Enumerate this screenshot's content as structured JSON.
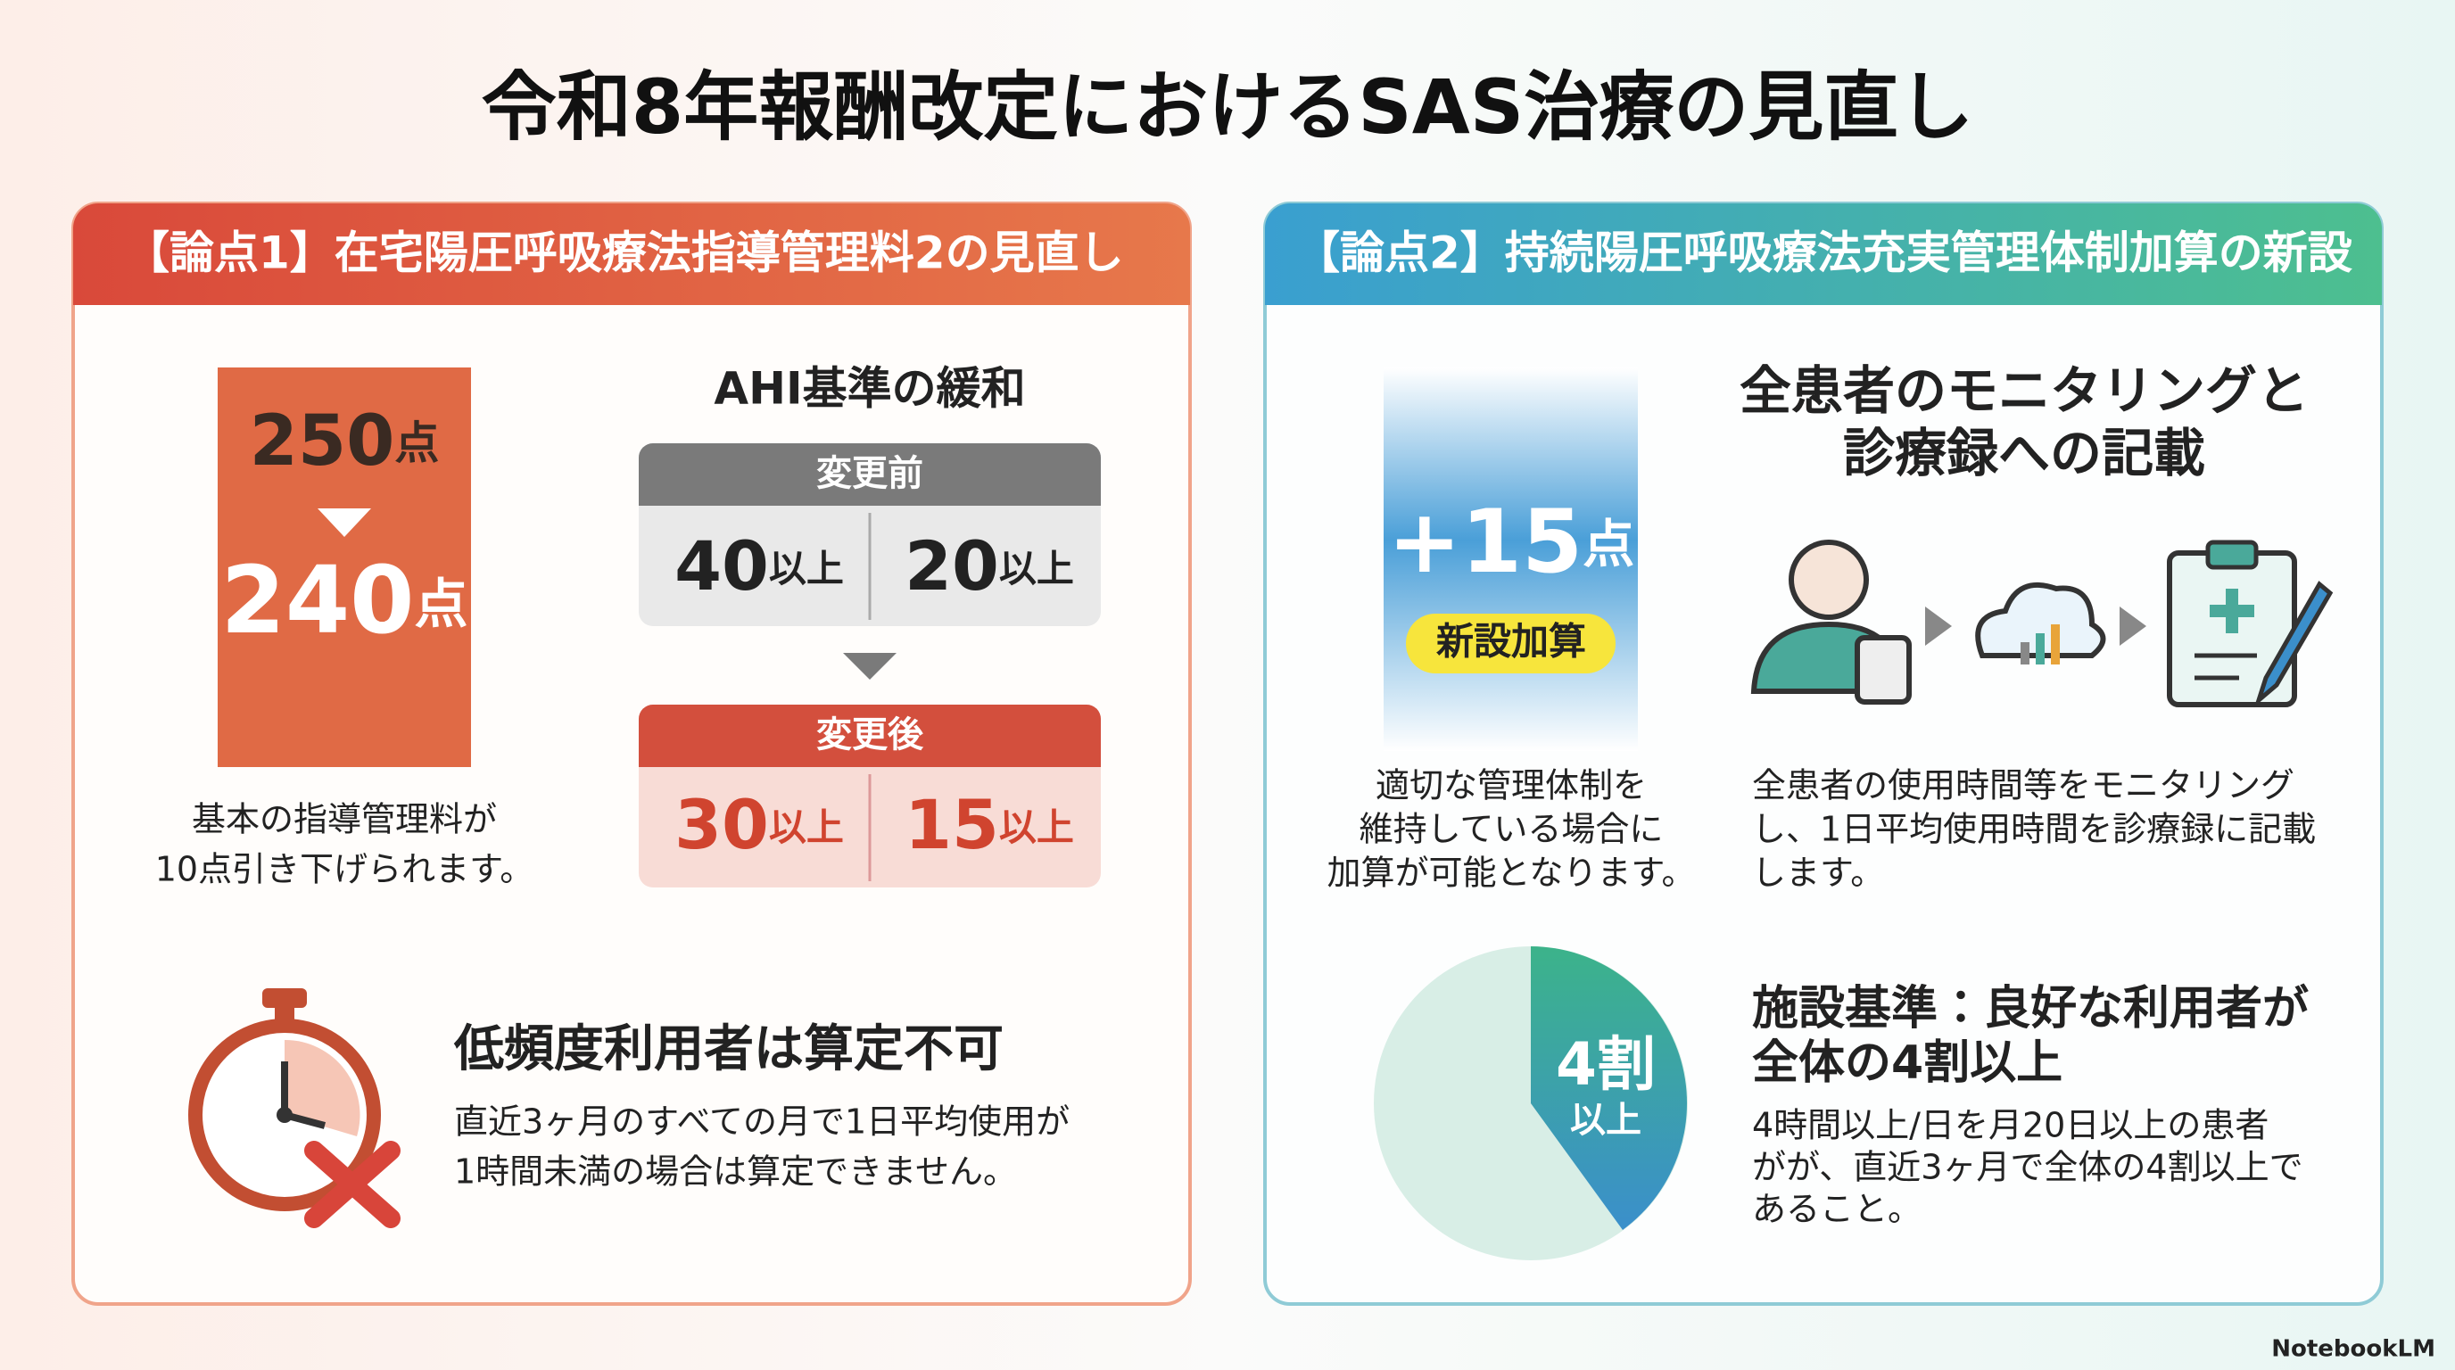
{
  "title": "令和8年報酬改定におけるSAS治療の見直し",
  "left": {
    "header": "【論点1】在宅陽圧呼吸療法指導管理料2の見直し",
    "fee_before": {
      "number": "250",
      "unit": "点"
    },
    "fee_after": {
      "number": "240",
      "unit": "点"
    },
    "fee_caption": [
      "基本の指導管理料が",
      "10点引き下げられます。"
    ],
    "ahi_title": "AHI基準の緩和",
    "before": {
      "label": "変更前",
      "items": [
        {
          "number": "40",
          "unit": "以上"
        },
        {
          "number": "20",
          "unit": "以上"
        }
      ]
    },
    "after": {
      "label": "変更後",
      "items": [
        {
          "number": "30",
          "unit": "以上"
        },
        {
          "number": "15",
          "unit": "以上"
        }
      ]
    },
    "low_use": {
      "heading": "低頻度利用者は算定不可",
      "lines": [
        "直近3ヶ月のすべての月で1日平均使用が",
        "1時間未満の場合は算定できません。"
      ]
    }
  },
  "right": {
    "header": "【論点2】持続陽圧呼吸療法充実管理体制加算の新設",
    "bonus": {
      "number": "+15",
      "unit": "点"
    },
    "bonus_badge": "新設加算",
    "bonus_caption": [
      "適切な管理体制を",
      "維持している場合に",
      "加算が可能となります。"
    ],
    "monitor_heading": [
      "全患者のモニタリングと",
      "診療録への記載"
    ],
    "monitor_lines": [
      "全患者の使用時間等をモニタリング",
      "し、1日平均使用時間を診療録に記載",
      "します。"
    ],
    "pie_label": {
      "number": "4割",
      "unit": "以上"
    },
    "criteria_heading": [
      "施設基準：良好な利用者が",
      "全体の4割以上"
    ],
    "criteria_lines": [
      "4時間以上/日を月20日以上の患者",
      "がが、直近3ヶ月で全体の4割以上で",
      "あること。"
    ]
  },
  "footer": "NotebookLM"
}
